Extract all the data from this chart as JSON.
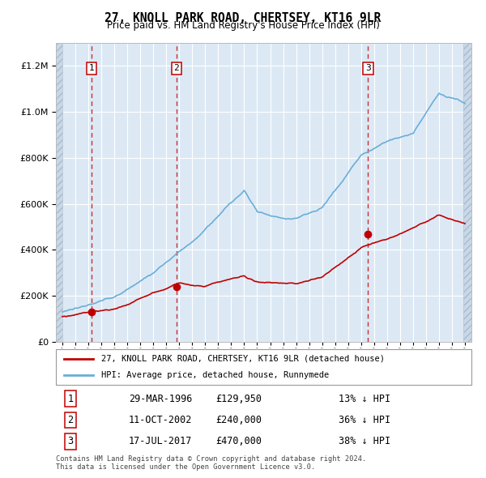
{
  "title": "27, KNOLL PARK ROAD, CHERTSEY, KT16 9LR",
  "subtitle": "Price paid vs. HM Land Registry's House Price Index (HPI)",
  "legend_line1": "27, KNOLL PARK ROAD, CHERTSEY, KT16 9LR (detached house)",
  "legend_line2": "HPI: Average price, detached house, Runnymede",
  "transactions": [
    {
      "num": 1,
      "date": "29-MAR-1996",
      "price": 129950,
      "pct": "13% ↓ HPI",
      "year": 1996.23
    },
    {
      "num": 2,
      "date": "11-OCT-2002",
      "price": 240000,
      "pct": "36% ↓ HPI",
      "year": 2002.78
    },
    {
      "num": 3,
      "date": "17-JUL-2017",
      "price": 470000,
      "pct": "38% ↓ HPI",
      "year": 2017.54
    }
  ],
  "footnote1": "Contains HM Land Registry data © Crown copyright and database right 2024.",
  "footnote2": "This data is licensed under the Open Government Licence v3.0.",
  "hpi_color": "#6aaed6",
  "price_color": "#c00000",
  "dashed_line_color": "#c00000",
  "plot_bg": "#dce9f5",
  "hatch_color": "#c8d8e8",
  "ylim": [
    0,
    1300000
  ],
  "xlim_start": 1993.5,
  "xlim_end": 2025.5,
  "data_start": 1994.0,
  "data_end": 2024.9,
  "yticks": [
    0,
    200000,
    400000,
    600000,
    800000,
    1000000,
    1200000
  ],
  "xticks": [
    1994,
    1995,
    1996,
    1997,
    1998,
    1999,
    2000,
    2001,
    2002,
    2003,
    2004,
    2005,
    2006,
    2007,
    2008,
    2009,
    2010,
    2011,
    2012,
    2013,
    2014,
    2015,
    2016,
    2017,
    2018,
    2019,
    2020,
    2021,
    2022,
    2023,
    2024,
    2025
  ],
  "figsize": [
    6.0,
    5.9
  ],
  "dpi": 100
}
